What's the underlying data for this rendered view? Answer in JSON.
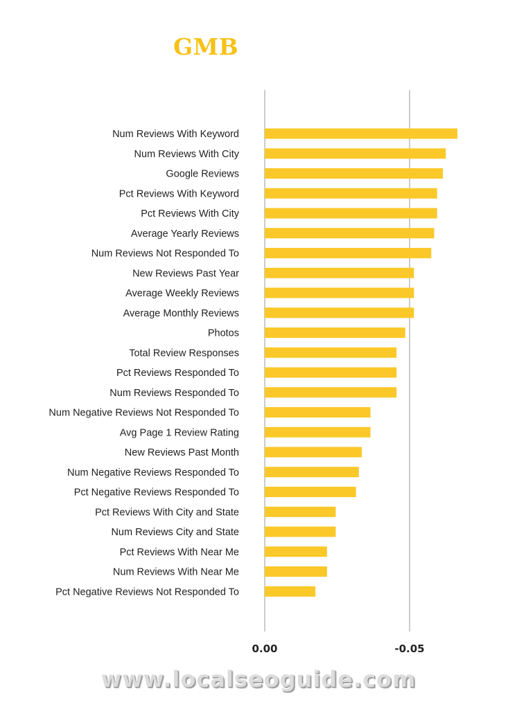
{
  "chart_data": {
    "type": "bar",
    "orientation": "horizontal",
    "title": "GMB",
    "xlabel": "",
    "ylabel": "",
    "xlim": [
      0,
      -0.075
    ],
    "xticks": [
      0.0,
      -0.05
    ],
    "xtick_labels": [
      "0.00",
      "-0.05"
    ],
    "grid": true,
    "bar_color": "#fac828",
    "categories": [
      "Num Reviews With Keyword",
      "Num Reviews With City",
      "Google Reviews",
      "Pct Reviews With Keyword",
      "Pct Reviews With City",
      "Average Yearly Reviews",
      "Num Reviews Not Responded To",
      "New Reviews Past Year",
      "Average Weekly Reviews",
      "Average Monthly Reviews",
      "Photos",
      "Total Review Responses",
      "Pct Reviews Responded To",
      "Num Reviews Responded To",
      "Num Negative Reviews Not Responded To",
      "Avg Page 1 Review Rating",
      "New Reviews Past Month",
      "Num Negative Reviews Responded To",
      "Pct Negative Reviews Responded To",
      "Pct Reviews With City and State",
      "Num Reviews City and State",
      "Pct Reviews With Near Me",
      "Num Reviews With Near Me",
      "Pct Negative Reviews Not Responded To"
    ],
    "values": [
      -0.0665,
      -0.0625,
      -0.0615,
      -0.0595,
      -0.0595,
      -0.0585,
      -0.0575,
      -0.0515,
      -0.0515,
      -0.0515,
      -0.0485,
      -0.0455,
      -0.0455,
      -0.0455,
      -0.0365,
      -0.0365,
      -0.0335,
      -0.0325,
      -0.0315,
      -0.0245,
      -0.0245,
      -0.0215,
      -0.0215,
      -0.0175
    ]
  },
  "watermark": "www.localseoguide.com"
}
